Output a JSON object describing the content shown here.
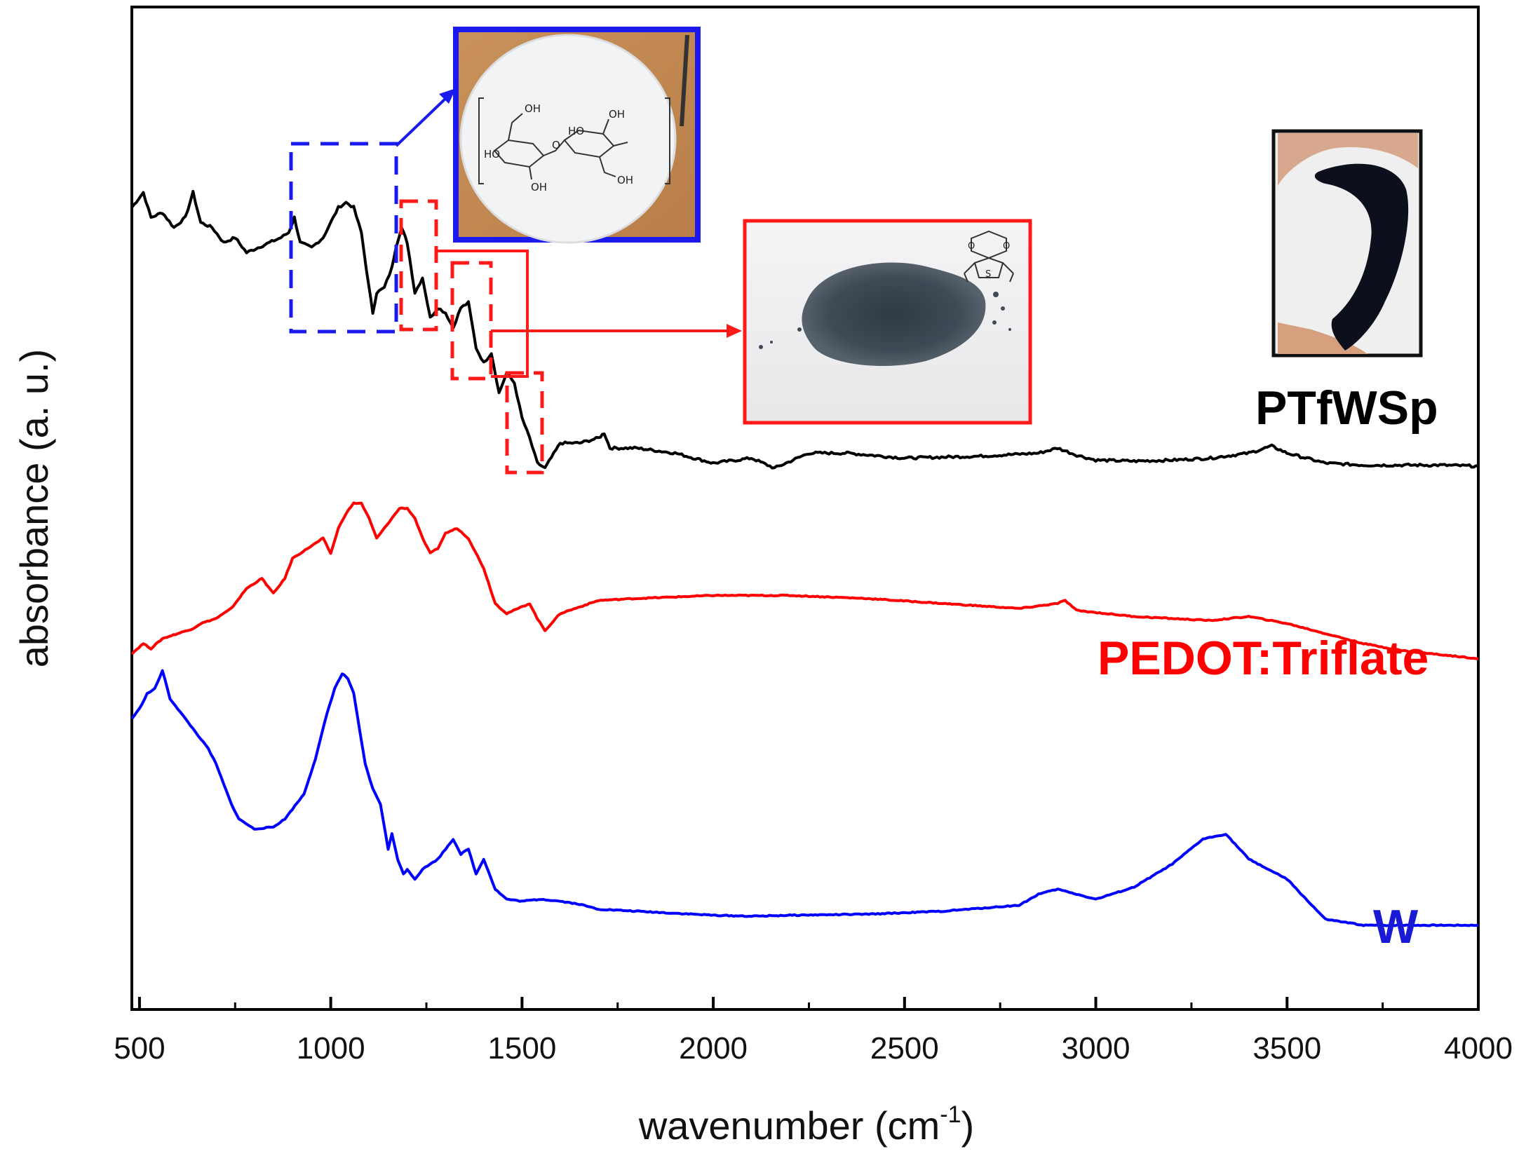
{
  "chart_data": {
    "type": "line",
    "title": "",
    "xlabel": "wavenumber (cm",
    "xlabel_sup": "-1",
    "xlabel_end": ")",
    "ylabel": "absorbance (a. u.)",
    "xlim": [
      480,
      4000
    ],
    "ylim": [
      0,
      1
    ],
    "xticks": [
      500,
      1000,
      1500,
      2000,
      2500,
      3000,
      3500,
      4000
    ],
    "grid": false,
    "series": [
      {
        "name": "PTfWSp",
        "color": "#000000",
        "x": [
          480,
          510,
          530,
          560,
          590,
          620,
          640,
          660,
          690,
          720,
          750,
          780,
          810,
          840,
          870,
          890,
          905,
          920,
          950,
          980,
          1000,
          1020,
          1040,
          1060,
          1080,
          1100,
          1110,
          1120,
          1140,
          1160,
          1170,
          1185,
          1200,
          1220,
          1240,
          1260,
          1280,
          1300,
          1320,
          1340,
          1360,
          1380,
          1400,
          1420,
          1440,
          1460,
          1480,
          1500,
          1520,
          1540,
          1560,
          1600,
          1650,
          1700,
          1715,
          1730,
          1800,
          1900,
          2000,
          2100,
          2160,
          2250,
          2350,
          2500,
          2700,
          2850,
          2900,
          2950,
          3000,
          3100,
          3200,
          3300,
          3400,
          3460,
          3500,
          3600,
          3700,
          3800,
          3900,
          4000
        ],
        "y": [
          0.8,
          0.815,
          0.79,
          0.795,
          0.78,
          0.79,
          0.815,
          0.785,
          0.78,
          0.765,
          0.77,
          0.755,
          0.76,
          0.765,
          0.77,
          0.775,
          0.79,
          0.765,
          0.76,
          0.77,
          0.785,
          0.8,
          0.805,
          0.8,
          0.775,
          0.72,
          0.695,
          0.715,
          0.72,
          0.74,
          0.76,
          0.78,
          0.765,
          0.715,
          0.73,
          0.69,
          0.7,
          0.695,
          0.68,
          0.7,
          0.705,
          0.66,
          0.645,
          0.655,
          0.615,
          0.635,
          0.625,
          0.59,
          0.57,
          0.545,
          0.54,
          0.565,
          0.565,
          0.57,
          0.575,
          0.56,
          0.56,
          0.555,
          0.545,
          0.55,
          0.54,
          0.555,
          0.555,
          0.55,
          0.552,
          0.555,
          0.56,
          0.553,
          0.548,
          0.547,
          0.548,
          0.55,
          0.555,
          0.562,
          0.555,
          0.545,
          0.543,
          0.543,
          0.543,
          0.542
        ]
      },
      {
        "name": "PEDOT:Triflate",
        "color": "#ff0000",
        "x": [
          480,
          510,
          530,
          560,
          600,
          640,
          660,
          700,
          740,
          780,
          820,
          850,
          880,
          900,
          940,
          980,
          1000,
          1020,
          1040,
          1060,
          1080,
          1100,
          1120,
          1140,
          1160,
          1180,
          1200,
          1220,
          1240,
          1260,
          1280,
          1300,
          1330,
          1360,
          1400,
          1430,
          1460,
          1490,
          1520,
          1540,
          1560,
          1600,
          1700,
          1800,
          2000,
          2200,
          2400,
          2600,
          2800,
          2900,
          2920,
          2950,
          3100,
          3300,
          3400,
          3500,
          3600,
          3700,
          3800,
          4000
        ],
        "y": [
          0.355,
          0.365,
          0.36,
          0.37,
          0.375,
          0.38,
          0.385,
          0.39,
          0.4,
          0.42,
          0.43,
          0.415,
          0.43,
          0.45,
          0.46,
          0.47,
          0.455,
          0.48,
          0.495,
          0.505,
          0.505,
          0.49,
          0.47,
          0.48,
          0.49,
          0.5,
          0.5,
          0.49,
          0.47,
          0.455,
          0.46,
          0.475,
          0.48,
          0.47,
          0.44,
          0.405,
          0.395,
          0.4,
          0.405,
          0.39,
          0.378,
          0.395,
          0.408,
          0.41,
          0.413,
          0.413,
          0.41,
          0.405,
          0.4,
          0.405,
          0.408,
          0.398,
          0.392,
          0.388,
          0.392,
          0.385,
          0.375,
          0.365,
          0.358,
          0.35
        ]
      },
      {
        "name": "W",
        "color": "#0000ff",
        "x": [
          480,
          500,
          520,
          540,
          560,
          580,
          600,
          620,
          640,
          660,
          680,
          700,
          720,
          740,
          760,
          800,
          850,
          880,
          900,
          930,
          960,
          990,
          1010,
          1030,
          1045,
          1060,
          1075,
          1090,
          1110,
          1130,
          1150,
          1160,
          1175,
          1190,
          1200,
          1220,
          1240,
          1260,
          1280,
          1300,
          1320,
          1340,
          1360,
          1380,
          1400,
          1430,
          1460,
          1500,
          1550,
          1600,
          1650,
          1700,
          1800,
          1900,
          2000,
          2100,
          2200,
          2400,
          2600,
          2800,
          2850,
          2900,
          2950,
          3000,
          3100,
          3200,
          3280,
          3340,
          3400,
          3500,
          3600,
          3700,
          3800,
          4000
        ],
        "y": [
          0.29,
          0.3,
          0.315,
          0.32,
          0.338,
          0.31,
          0.3,
          0.29,
          0.28,
          0.27,
          0.26,
          0.245,
          0.225,
          0.205,
          0.19,
          0.18,
          0.182,
          0.19,
          0.2,
          0.215,
          0.25,
          0.295,
          0.32,
          0.335,
          0.33,
          0.315,
          0.28,
          0.245,
          0.22,
          0.205,
          0.16,
          0.175,
          0.15,
          0.135,
          0.14,
          0.13,
          0.14,
          0.145,
          0.15,
          0.16,
          0.17,
          0.155,
          0.16,
          0.135,
          0.15,
          0.12,
          0.11,
          0.108,
          0.11,
          0.108,
          0.105,
          0.1,
          0.098,
          0.096,
          0.094,
          0.093,
          0.094,
          0.095,
          0.098,
          0.104,
          0.115,
          0.12,
          0.115,
          0.11,
          0.122,
          0.145,
          0.17,
          0.175,
          0.15,
          0.13,
          0.09,
          0.084,
          0.084,
          0.084
        ]
      }
    ],
    "labels": {
      "ptfwsp": "PTfWSp",
      "pedot": "PEDOT:Triflate",
      "w": "W"
    },
    "annotations": {
      "cellulose_photo": "cellulose filter paper with cellobiose structure",
      "pedot_photo": "PEDOT:Triflate powder with EDOT structure",
      "ptfwsp_photo": "PTfWSp sample"
    }
  },
  "colors": {
    "ptfwsp": "#000000",
    "pedot": "#ff0000",
    "w": "#0000ff",
    "inset_blue": "#1010ee",
    "inset_red": "#ff1a1a"
  }
}
